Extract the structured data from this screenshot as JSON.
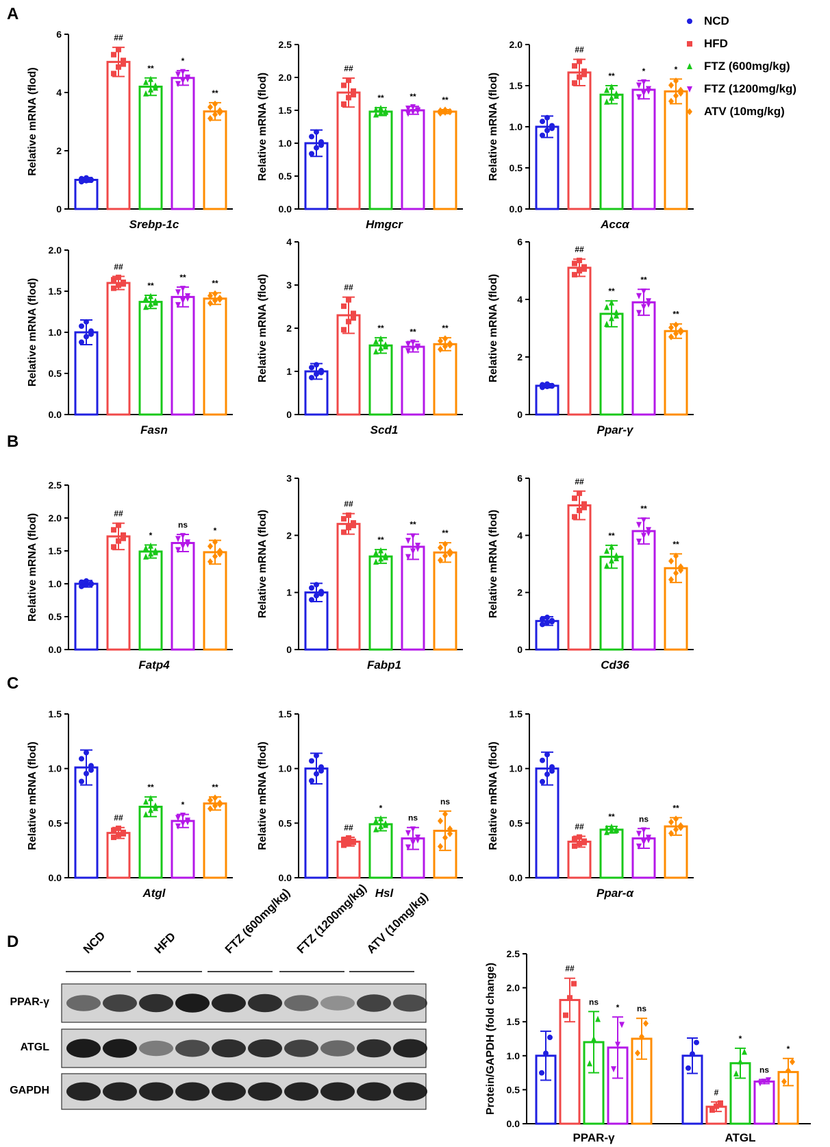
{
  "panel_letters": {
    "a": "A",
    "b": "B",
    "c": "C",
    "d": "D"
  },
  "legend": [
    {
      "label": "NCD",
      "color": "#1f1fe0",
      "marker": "circle"
    },
    {
      "label": "HFD",
      "color": "#f04848",
      "marker": "square"
    },
    {
      "label": "FTZ (600mg/kg)",
      "color": "#19c819",
      "marker": "triangle-up"
    },
    {
      "label": "FTZ (1200mg/kg)",
      "color": "#b418e8",
      "marker": "triangle-down"
    },
    {
      "label": "ATV (10mg/kg)",
      "color": "#ff8c00",
      "marker": "diamond"
    }
  ],
  "chart_data": [
    {
      "type": "bar",
      "gene": "Srebp-1c",
      "ylabel": "Relative mRNA (flod)",
      "ylim": [
        0,
        6
      ],
      "yticks": [
        0,
        2,
        4,
        6
      ],
      "categories": [
        "NCD",
        "HFD",
        "FTZ (600mg/kg)",
        "FTZ (1200mg/kg)",
        "ATV (10mg/kg)"
      ],
      "values": [
        1.0,
        5.05,
        4.2,
        4.5,
        3.35
      ],
      "errors": [
        0.08,
        0.5,
        0.3,
        0.25,
        0.3
      ],
      "significance": [
        "",
        "##",
        "**",
        "*",
        "**"
      ]
    },
    {
      "type": "bar",
      "gene": "Hmgcr",
      "ylabel": "Relative mRNA (flod)",
      "ylim": [
        0,
        2.5
      ],
      "yticks": [
        0,
        0.5,
        1.0,
        1.5,
        2.0,
        2.5
      ],
      "categories": [
        "NCD",
        "HFD",
        "FTZ (600mg/kg)",
        "FTZ (1200mg/kg)",
        "ATV (10mg/kg)"
      ],
      "values": [
        1.0,
        1.77,
        1.48,
        1.5,
        1.48
      ],
      "errors": [
        0.2,
        0.22,
        0.06,
        0.06,
        0.03
      ],
      "significance": [
        "",
        "##",
        "**",
        "**",
        "**"
      ]
    },
    {
      "type": "bar",
      "gene": "Accα",
      "ylabel": "Relative mRNA (flod)",
      "ylim": [
        0,
        2.0
      ],
      "yticks": [
        0,
        0.5,
        1.0,
        1.5,
        2.0
      ],
      "categories": [
        "NCD",
        "HFD",
        "FTZ (600mg/kg)",
        "FTZ (1200mg/kg)",
        "ATV (10mg/kg)"
      ],
      "values": [
        1.0,
        1.66,
        1.39,
        1.45,
        1.43
      ],
      "errors": [
        0.13,
        0.16,
        0.11,
        0.11,
        0.15
      ],
      "significance": [
        "",
        "##",
        "**",
        "*",
        "*"
      ]
    },
    {
      "type": "bar",
      "gene": "Fasn",
      "ylabel": "Relative mRNA (flod)",
      "ylim": [
        0,
        2.0
      ],
      "yticks": [
        0,
        0.5,
        1.0,
        1.5,
        2.0
      ],
      "categories": [
        "NCD",
        "HFD",
        "FTZ (600mg/kg)",
        "FTZ (1200mg/kg)",
        "ATV (10mg/kg)"
      ],
      "values": [
        1.0,
        1.6,
        1.37,
        1.43,
        1.41
      ],
      "errors": [
        0.15,
        0.08,
        0.08,
        0.12,
        0.07
      ],
      "significance": [
        "",
        "##",
        "**",
        "**",
        "**"
      ]
    },
    {
      "type": "bar",
      "gene": "Scd1",
      "ylabel": "Relative mRNA (flod)",
      "ylim": [
        0,
        4
      ],
      "yticks": [
        0,
        1,
        2,
        3,
        4
      ],
      "categories": [
        "NCD",
        "HFD",
        "FTZ (600mg/kg)",
        "FTZ (1200mg/kg)",
        "ATV (10mg/kg)"
      ],
      "values": [
        1.0,
        2.3,
        1.6,
        1.57,
        1.63
      ],
      "errors": [
        0.18,
        0.42,
        0.18,
        0.12,
        0.15
      ],
      "significance": [
        "",
        "##",
        "**",
        "**",
        "**"
      ]
    },
    {
      "type": "bar",
      "gene": "Ppar-γ",
      "ylabel": "Relative mRNA (flod)",
      "ylim": [
        0,
        6
      ],
      "yticks": [
        0,
        2,
        4,
        6
      ],
      "categories": [
        "NCD",
        "HFD",
        "FTZ (600mg/kg)",
        "FTZ (1200mg/kg)",
        "ATV (10mg/kg)"
      ],
      "values": [
        1.0,
        5.1,
        3.5,
        3.9,
        2.9
      ],
      "errors": [
        0.07,
        0.3,
        0.45,
        0.45,
        0.25
      ],
      "significance": [
        "",
        "##",
        "**",
        "**",
        "**"
      ]
    },
    {
      "type": "bar",
      "gene": "Fatp4",
      "ylabel": "Relative mRNA (flod)",
      "ylim": [
        0,
        2.5
      ],
      "yticks": [
        0,
        0.5,
        1.0,
        1.5,
        2.0,
        2.5
      ],
      "categories": [
        "NCD",
        "HFD",
        "FTZ (600mg/kg)",
        "FTZ (1200mg/kg)",
        "ATV (10mg/kg)"
      ],
      "values": [
        1.0,
        1.72,
        1.49,
        1.62,
        1.48
      ],
      "errors": [
        0.05,
        0.2,
        0.1,
        0.13,
        0.18
      ],
      "significance": [
        "",
        "##",
        "*",
        "ns",
        "*"
      ]
    },
    {
      "type": "bar",
      "gene": "Fabp1",
      "ylabel": "Relative mRNA (flod)",
      "ylim": [
        0,
        3
      ],
      "yticks": [
        0,
        1,
        2,
        3
      ],
      "categories": [
        "NCD",
        "HFD",
        "FTZ (600mg/kg)",
        "FTZ (1200mg/kg)",
        "ATV (10mg/kg)"
      ],
      "values": [
        1.0,
        2.2,
        1.63,
        1.8,
        1.7
      ],
      "errors": [
        0.16,
        0.18,
        0.12,
        0.22,
        0.17
      ],
      "significance": [
        "",
        "##",
        "**",
        "**",
        "**"
      ]
    },
    {
      "type": "bar",
      "gene": "Cd36",
      "ylabel": "Relative mRNA (flod)",
      "ylim": [
        0,
        6
      ],
      "yticks": [
        0,
        2,
        4,
        6
      ],
      "categories": [
        "NCD",
        "HFD",
        "FTZ (600mg/kg)",
        "FTZ (1200mg/kg)",
        "ATV (10mg/kg)"
      ],
      "values": [
        1.0,
        5.05,
        3.25,
        4.15,
        2.85
      ],
      "errors": [
        0.15,
        0.5,
        0.4,
        0.45,
        0.5
      ],
      "significance": [
        "",
        "##",
        "**",
        "**",
        "**"
      ]
    },
    {
      "type": "bar",
      "gene": "Atgl",
      "ylabel": "Relative mRNA (flod)",
      "ylim": [
        0,
        1.5
      ],
      "yticks": [
        0,
        0.5,
        1.0,
        1.5
      ],
      "categories": [
        "NCD",
        "HFD",
        "FTZ (600mg/kg)",
        "FTZ (1200mg/kg)",
        "ATV (10mg/kg)"
      ],
      "values": [
        1.01,
        0.41,
        0.65,
        0.52,
        0.68
      ],
      "errors": [
        0.16,
        0.05,
        0.09,
        0.06,
        0.06
      ],
      "significance": [
        "",
        "##",
        "**",
        "*",
        "**"
      ]
    },
    {
      "type": "bar",
      "gene": "Hsl",
      "ylabel": "Relative mRNA (flod)",
      "ylim": [
        0,
        1.5
      ],
      "yticks": [
        0,
        0.5,
        1.0,
        1.5
      ],
      "categories": [
        "NCD",
        "HFD",
        "FTZ (600mg/kg)",
        "FTZ (1200mg/kg)",
        "ATV (10mg/kg)"
      ],
      "values": [
        1.0,
        0.33,
        0.49,
        0.36,
        0.43
      ],
      "errors": [
        0.14,
        0.04,
        0.06,
        0.1,
        0.18
      ],
      "significance": [
        "",
        "##",
        "*",
        "ns",
        "ns"
      ]
    },
    {
      "type": "bar",
      "gene": "Ppar-α",
      "ylabel": "Relative mRNA (flod)",
      "ylim": [
        0,
        1.5
      ],
      "yticks": [
        0,
        0.5,
        1.0,
        1.5
      ],
      "categories": [
        "NCD",
        "HFD",
        "FTZ (600mg/kg)",
        "FTZ (1200mg/kg)",
        "ATV (10mg/kg)"
      ],
      "values": [
        1.0,
        0.33,
        0.44,
        0.36,
        0.47
      ],
      "errors": [
        0.15,
        0.05,
        0.03,
        0.09,
        0.08
      ],
      "significance": [
        "",
        "##",
        "**",
        "ns",
        "**"
      ]
    },
    {
      "type": "bar",
      "ylabel": "Protein/GAPDH (fold change)",
      "ylim": [
        0,
        2.5
      ],
      "yticks": [
        0,
        0.5,
        1.0,
        1.5,
        2.0,
        2.5
      ],
      "categories": [
        "PPAR-γ",
        "ATGL"
      ],
      "series": [
        {
          "name": "NCD",
          "values": [
            1.0,
            1.0
          ],
          "errors": [
            0.36,
            0.26
          ],
          "significance": [
            "",
            ""
          ]
        },
        {
          "name": "HFD",
          "values": [
            1.82,
            0.25
          ],
          "errors": [
            0.32,
            0.07
          ],
          "significance": [
            "##",
            "#"
          ]
        },
        {
          "name": "FTZ (600mg/kg)",
          "values": [
            1.2,
            0.89
          ],
          "errors": [
            0.45,
            0.22
          ],
          "significance": [
            "ns",
            "*"
          ]
        },
        {
          "name": "FTZ (1200mg/kg)",
          "values": [
            1.12,
            0.62
          ],
          "errors": [
            0.45,
            0.03
          ],
          "significance": [
            "*",
            "ns"
          ]
        },
        {
          "name": "ATV (10mg/kg)",
          "values": [
            1.25,
            0.76
          ],
          "errors": [
            0.3,
            0.2
          ],
          "significance": [
            "ns",
            "*"
          ]
        }
      ]
    }
  ],
  "western_blot": {
    "lanes": [
      "NCD",
      "HFD",
      "FTZ (600mg/kg)",
      "FTZ (1200mg/kg)",
      "ATV (10mg/kg)"
    ],
    "rows": [
      "PPAR-γ",
      "ATGL",
      "GAPDH"
    ]
  }
}
